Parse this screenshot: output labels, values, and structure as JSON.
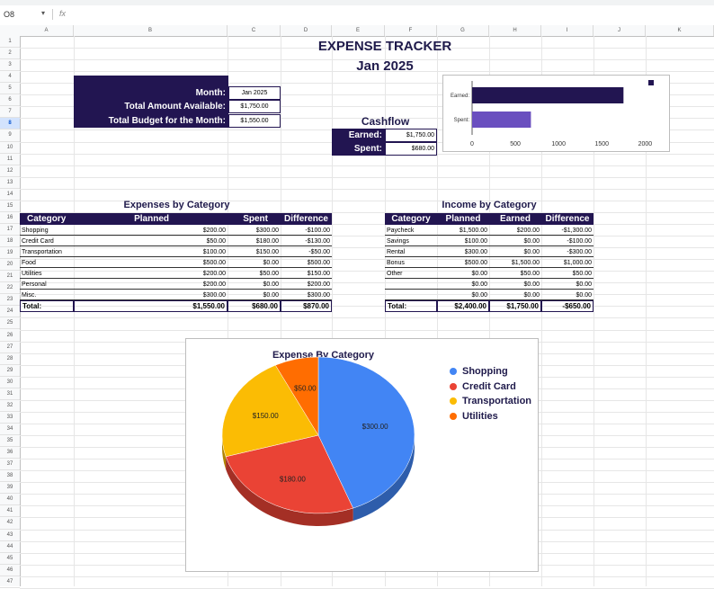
{
  "toolbar": {
    "name_box": "O8",
    "fx": "fx"
  },
  "columns": [
    "A",
    "B",
    "C",
    "D",
    "E",
    "F",
    "G",
    "H",
    "I",
    "J",
    "K"
  ],
  "rows": [
    "1",
    "2",
    "3",
    "4",
    "5",
    "6",
    "7",
    "8",
    "9",
    "10",
    "11",
    "12",
    "13",
    "14",
    "15",
    "16",
    "17",
    "18",
    "19",
    "20",
    "21",
    "22",
    "23",
    "24",
    "25",
    "26",
    "27",
    "28",
    "29",
    "30",
    "31",
    "32",
    "33",
    "34",
    "35",
    "36",
    "37",
    "38",
    "39",
    "40",
    "41",
    "42",
    "43",
    "44",
    "45",
    "46",
    "47"
  ],
  "header": {
    "title": "EXPENSE TRACKER",
    "subtitle": "Jan 2025"
  },
  "summary": {
    "month_label": "Month:",
    "month_value": "Jan 2025",
    "available_label": "Total Amount Available:",
    "available_value": "$1,750.00",
    "budget_label": "Total Budget for the Month:",
    "budget_value": "$1,550.00"
  },
  "cashflow": {
    "title": "Cashflow",
    "earned_label": "Earned:",
    "earned_value": "$1,750.00",
    "spent_label": "Spent:",
    "spent_value": "$680.00"
  },
  "expenses": {
    "title": "Expenses by Category",
    "headers": [
      "Category",
      "Planned",
      "Spent",
      "Difference"
    ],
    "rows": [
      [
        "Shopping",
        "$200.00",
        "$300.00",
        "-$100.00"
      ],
      [
        "Credit Card",
        "$50.00",
        "$180.00",
        "-$130.00"
      ],
      [
        "Transportation",
        "$100.00",
        "$150.00",
        "-$50.00"
      ],
      [
        "Food",
        "$500.00",
        "$0.00",
        "$500.00"
      ],
      [
        "Utilities",
        "$200.00",
        "$50.00",
        "$150.00"
      ],
      [
        "Personal",
        "$200.00",
        "$0.00",
        "$200.00"
      ],
      [
        "Misc.",
        "$300.00",
        "$0.00",
        "$300.00"
      ]
    ],
    "total": [
      "Total:",
      "$1,550.00",
      "$680.00",
      "$870.00"
    ]
  },
  "income": {
    "title": "Income by Category",
    "headers": [
      "Category",
      "Planned",
      "Earned",
      "Difference"
    ],
    "rows": [
      [
        "Paycheck",
        "$1,500.00",
        "$200.00",
        "-$1,300.00"
      ],
      [
        "Savings",
        "$100.00",
        "$0.00",
        "-$100.00"
      ],
      [
        "Rental",
        "$300.00",
        "$0.00",
        "-$300.00"
      ],
      [
        "Bonus",
        "$500.00",
        "$1,500.00",
        "$1,000.00"
      ],
      [
        "Other",
        "$0.00",
        "$50.00",
        "$50.00"
      ],
      [
        "",
        "$0.00",
        "$0.00",
        "$0.00"
      ],
      [
        "",
        "$0.00",
        "$0.00",
        "$0.00"
      ]
    ],
    "total": [
      "Total:",
      "$2,400.00",
      "$1,750.00",
      "-$650.00"
    ]
  },
  "cashflow_chart": {
    "type": "bar",
    "categories": [
      "Earned:",
      "Spent:"
    ],
    "values": [
      1750,
      680
    ],
    "colors": [
      "#221551",
      "#6a4fbf"
    ],
    "xlim": [
      0,
      2100
    ],
    "ticks": [
      "0",
      "500",
      "1000",
      "1500",
      "2000"
    ],
    "tick_values": [
      0,
      500,
      1000,
      1500,
      2000
    ]
  },
  "pie_chart": {
    "type": "pie",
    "title": "Expense By Category",
    "slices": [
      {
        "name": "Shopping",
        "value": 300,
        "label": "$300.00",
        "color": "#4285f4"
      },
      {
        "name": "Credit Card",
        "value": 180,
        "label": "$180.00",
        "color": "#ea4335"
      },
      {
        "name": "Transportation",
        "value": 150,
        "label": "$150.00",
        "color": "#fbbc04"
      },
      {
        "name": "Utilities",
        "value": 50,
        "label": "$50.00",
        "color": "#ff6d01"
      }
    ]
  }
}
